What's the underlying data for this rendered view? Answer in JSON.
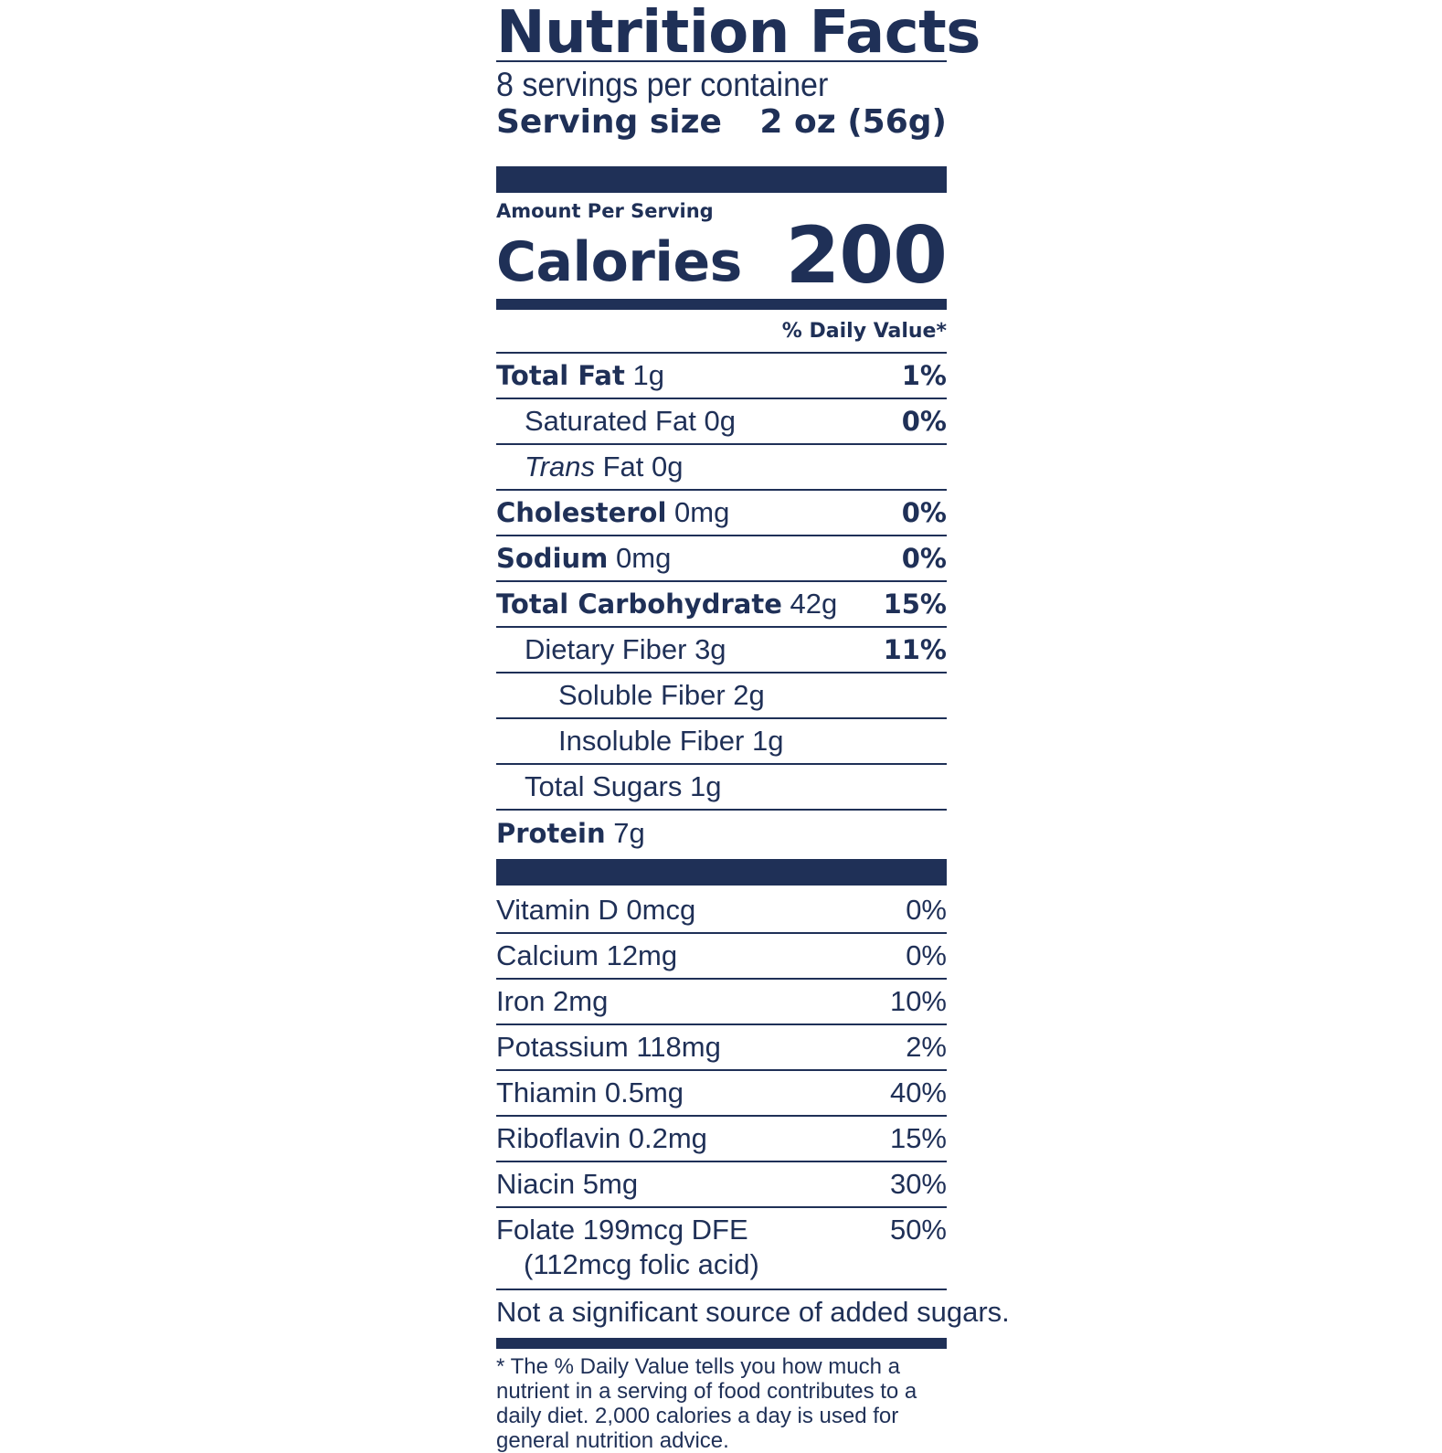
{
  "label": {
    "title": "Nutrition Facts",
    "servings_per_container": "8 servings per container",
    "serving_size_label": "Serving size",
    "serving_size_value": "2 oz (56g)",
    "amount_per_serving": "Amount Per Serving",
    "calories_label": "Calories",
    "calories_value": "200",
    "daily_value_header": "% Daily Value*",
    "nutrients": [
      {
        "name": "Total Fat",
        "amount": "1g",
        "dv": "1%"
      },
      {
        "name": "Saturated Fat",
        "amount": "0g",
        "dv": "0%"
      },
      {
        "name": "Trans",
        "amount": "Fat 0g",
        "dv": ""
      },
      {
        "name": "Cholesterol",
        "amount": "0mg",
        "dv": "0%"
      },
      {
        "name": "Sodium",
        "amount": "0mg",
        "dv": "0%"
      },
      {
        "name": "Total Carbohydrate",
        "amount": "42g",
        "dv": "15%"
      },
      {
        "name": "Dietary Fiber",
        "amount": "3g",
        "dv": "11%"
      },
      {
        "name": "Soluble Fiber",
        "amount": "2g",
        "dv": ""
      },
      {
        "name": "Insoluble Fiber",
        "amount": "1g",
        "dv": ""
      },
      {
        "name": "Total Sugars",
        "amount": "1g",
        "dv": ""
      },
      {
        "name": "Protein",
        "amount": "7g",
        "dv": ""
      }
    ],
    "vitamins": [
      {
        "text": "Vitamin D 0mcg",
        "dv": "0%"
      },
      {
        "text": "Calcium 12mg",
        "dv": "0%"
      },
      {
        "text": "Iron 2mg",
        "dv": "10%"
      },
      {
        "text": "Potassium 118mg",
        "dv": "2%"
      },
      {
        "text": "Thiamin 0.5mg",
        "dv": "40%"
      },
      {
        "text": "Riboflavin 0.2mg",
        "dv": "15%"
      },
      {
        "text": "Niacin 5mg",
        "dv": "30%"
      },
      {
        "text": "Folate 199mcg DFE",
        "sub": "(112mcg folic acid)",
        "dv": "50%"
      }
    ],
    "added_sugars_note": "Not a significant source of added sugars.",
    "footnote": "* The % Daily Value tells you how much a nutrient in a serving of food contributes to a daily diet. 2,000 calories a day is used for general nutrition advice."
  },
  "colors": {
    "ink": "#1f3057",
    "background": "#ffffff"
  }
}
